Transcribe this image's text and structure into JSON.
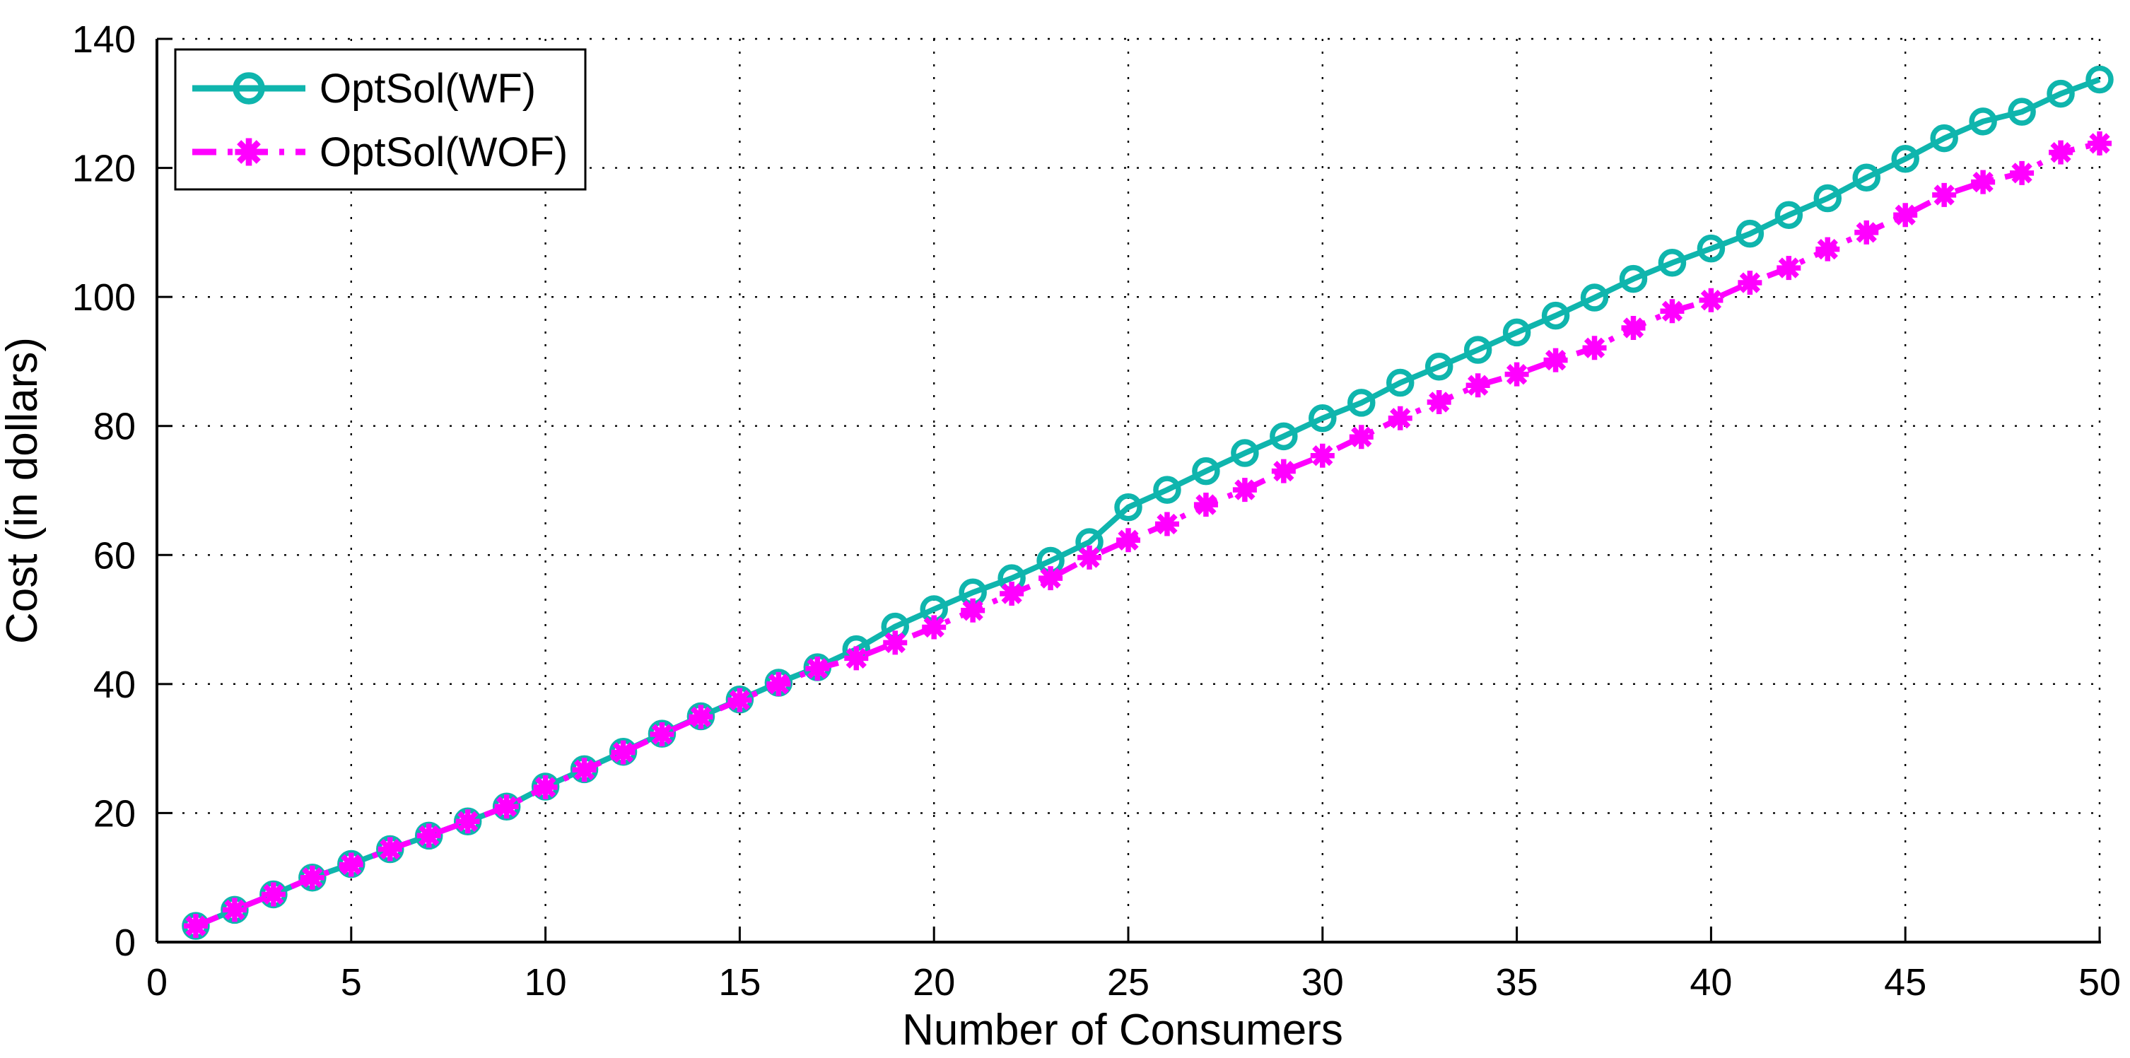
{
  "chart_data": {
    "type": "line",
    "title": "",
    "xlabel": "Number of Consumers",
    "ylabel": "Cost (in dollars)",
    "xlim": [
      0,
      50
    ],
    "ylim": [
      0,
      140
    ],
    "xticks": [
      0,
      5,
      10,
      15,
      20,
      25,
      30,
      35,
      40,
      45,
      50
    ],
    "yticks": [
      0,
      20,
      40,
      60,
      80,
      100,
      120,
      140
    ],
    "grid": true,
    "grid_style": "dotted",
    "legend_position": "top-left",
    "x": [
      1,
      2,
      3,
      4,
      5,
      6,
      7,
      8,
      9,
      10,
      11,
      12,
      13,
      14,
      15,
      16,
      17,
      18,
      19,
      20,
      21,
      22,
      23,
      24,
      25,
      26,
      27,
      28,
      29,
      30,
      31,
      32,
      33,
      34,
      35,
      36,
      37,
      38,
      39,
      40,
      41,
      42,
      43,
      44,
      45,
      46,
      47,
      48,
      49,
      50
    ],
    "series": [
      {
        "name": "OptSol(WF)",
        "color": "#0FB5AD",
        "line_style": "solid",
        "marker": "circle",
        "values": [
          2.5,
          5,
          7.4,
          10,
          12.1,
          14.4,
          16.5,
          18.7,
          21,
          24.1,
          26.8,
          29.5,
          32.3,
          35,
          37.6,
          40.2,
          42.6,
          45.4,
          48.9,
          51.6,
          54.2,
          56.4,
          59.1,
          62,
          67.4,
          70.1,
          73,
          75.8,
          78.4,
          81.2,
          83.6,
          86.7,
          89.2,
          91.8,
          94.5,
          97.1,
          99.9,
          102.8,
          105.3,
          107.5,
          109.8,
          112.7,
          115.3,
          118.5,
          121.4,
          124.6,
          127.2,
          128.7,
          131.5,
          133.7
        ]
      },
      {
        "name": "OptSol(WOF)",
        "color": "#FF00FF",
        "line_style": "dash-dot",
        "marker": "asterisk",
        "values": [
          2.5,
          5,
          7.4,
          10,
          12,
          14.4,
          16.5,
          18.7,
          21,
          24,
          26.7,
          29.4,
          32.2,
          34.9,
          37.5,
          40,
          42.4,
          44,
          46.4,
          48.8,
          51.4,
          54,
          56.4,
          59.6,
          62.3,
          64.8,
          67.8,
          70.1,
          73,
          75.4,
          78.3,
          81.2,
          83.7,
          86.3,
          88,
          90.2,
          92.1,
          95.2,
          97.8,
          99.5,
          102.2,
          104.5,
          107.4,
          110,
          112.7,
          115.8,
          117.8,
          119.2,
          122.4,
          123.8
        ]
      }
    ],
    "colors": {
      "axis": "#000000",
      "grid": "#000000",
      "text": "#000000",
      "background": "#FFFFFF"
    }
  }
}
